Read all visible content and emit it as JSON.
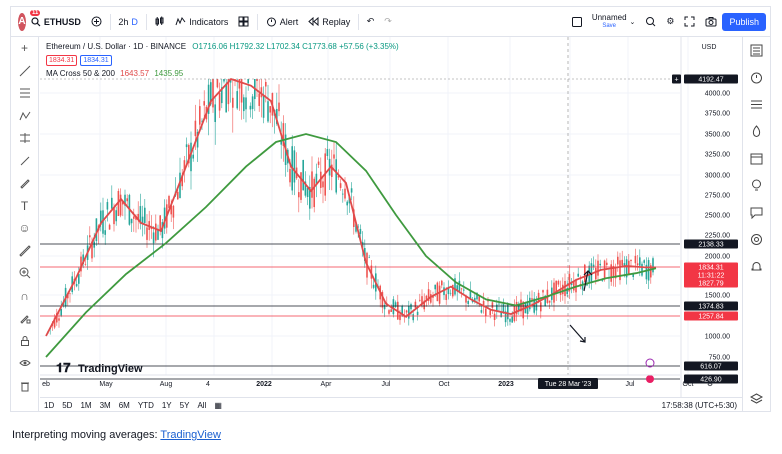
{
  "toolbar": {
    "logo_text": "A",
    "logo_badge": "11",
    "symbol": "ETHUSD",
    "interval": "2h",
    "interval_suffix": "D",
    "indicators_label": "Indicators",
    "alert_label": "Alert",
    "replay_label": "Replay",
    "layout_name": "Unnamed",
    "save_label": "Save",
    "publish_label": "Publish"
  },
  "legend": {
    "symbol_line": "Ethereum / U.S. Dollar · 1D · BINANCE",
    "ohlc": "O1716.06 H1792.32 L1702.34 C1773.68 +57.56 (+3.35%)",
    "price_a": "1834.31",
    "price_b": "1834.31",
    "ma_label": "MA Cross 50 & 200",
    "ma_fast": "1643.57",
    "ma_slow": "1435.95"
  },
  "price_axis": {
    "currency": "USD",
    "ticks": [
      "4000.00",
      "3750.00",
      "3500.00",
      "3250.00",
      "3000.00",
      "2750.00",
      "2500.00",
      "2250.00",
      "2000.00",
      "1500.00",
      "1000.00",
      "750.00"
    ],
    "tags": [
      {
        "value": "4192.47",
        "color": "#131722"
      },
      {
        "value": "2138.33",
        "color": "#131722"
      },
      {
        "value": "1834.31",
        "color": "#f23645"
      },
      {
        "value": "11:31:22",
        "color": "#f23645"
      },
      {
        "value": "1827.79",
        "color": "#f23645"
      },
      {
        "value": "1374.83",
        "color": "#131722"
      },
      {
        "value": "1257.84",
        "color": "#f23645"
      },
      {
        "value": "616.07",
        "color": "#131722"
      },
      {
        "value": "426.90",
        "color": "#131722"
      }
    ]
  },
  "time_axis": {
    "ticks": [
      "eb",
      "May",
      "Aug",
      "4",
      "2022",
      "Apr",
      "Jul",
      "Oct",
      "2023",
      "Jul",
      "Oct"
    ],
    "crosshair_label": "Tue 28 Mar '23"
  },
  "watermark": "TradingView",
  "bottom": {
    "ranges": [
      "1D",
      "5D",
      "1M",
      "3M",
      "6M",
      "YTD",
      "1Y",
      "5Y",
      "All"
    ],
    "clock": "17:58:38 (UTC+5:30)"
  },
  "caption": {
    "prefix": "Interpreting moving averages: ",
    "link": "TradingView"
  },
  "colors": {
    "fast_ma": "#e04a4a",
    "slow_ma": "#3f9a3f",
    "candle_up": "#26a69a",
    "candle_down": "#ef5350",
    "accent": "#2962ff"
  },
  "chart_data": {
    "type": "line",
    "series": [
      {
        "name": "MA Cross 50 & 200",
        "color": "#e04a4a",
        "points": [
          [
            0,
            1000
          ],
          [
            30,
            1700
          ],
          [
            55,
            2400
          ],
          [
            75,
            2700
          ],
          [
            95,
            2400
          ],
          [
            115,
            2300
          ],
          [
            140,
            3100
          ],
          [
            165,
            3900
          ],
          [
            185,
            4200
          ],
          [
            205,
            4100
          ],
          [
            225,
            3900
          ],
          [
            245,
            3100
          ],
          [
            265,
            2800
          ],
          [
            285,
            3100
          ],
          [
            300,
            2900
          ],
          [
            320,
            1900
          ],
          [
            340,
            1400
          ],
          [
            360,
            1250
          ],
          [
            385,
            1480
          ],
          [
            405,
            1600
          ],
          [
            425,
            1450
          ],
          [
            445,
            1330
          ],
          [
            465,
            1280
          ],
          [
            485,
            1380
          ],
          [
            505,
            1500
          ],
          [
            530,
            1680
          ],
          [
            555,
            1800
          ],
          [
            580,
            1850
          ],
          [
            600,
            1830
          ],
          [
            610,
            1830
          ]
        ]
      },
      {
        "name": "MA Cross 50 & 200",
        "color": "#3f9a3f",
        "points": [
          [
            0,
            750
          ],
          [
            40,
            1300
          ],
          [
            80,
            1750
          ],
          [
            120,
            2150
          ],
          [
            160,
            2600
          ],
          [
            200,
            3100
          ],
          [
            230,
            3400
          ],
          [
            260,
            3500
          ],
          [
            290,
            3400
          ],
          [
            320,
            3050
          ],
          [
            350,
            2500
          ],
          [
            380,
            2000
          ],
          [
            410,
            1650
          ],
          [
            440,
            1450
          ],
          [
            470,
            1380
          ],
          [
            500,
            1480
          ],
          [
            530,
            1600
          ],
          [
            560,
            1700
          ],
          [
            590,
            1760
          ],
          [
            610,
            1820
          ]
        ]
      }
    ],
    "horizontal_lines": [
      2138.33,
      1834.31,
      1374.83,
      1257.84,
      616.07,
      426.9
    ],
    "ylim": [
      426.9,
      4192.47
    ]
  }
}
